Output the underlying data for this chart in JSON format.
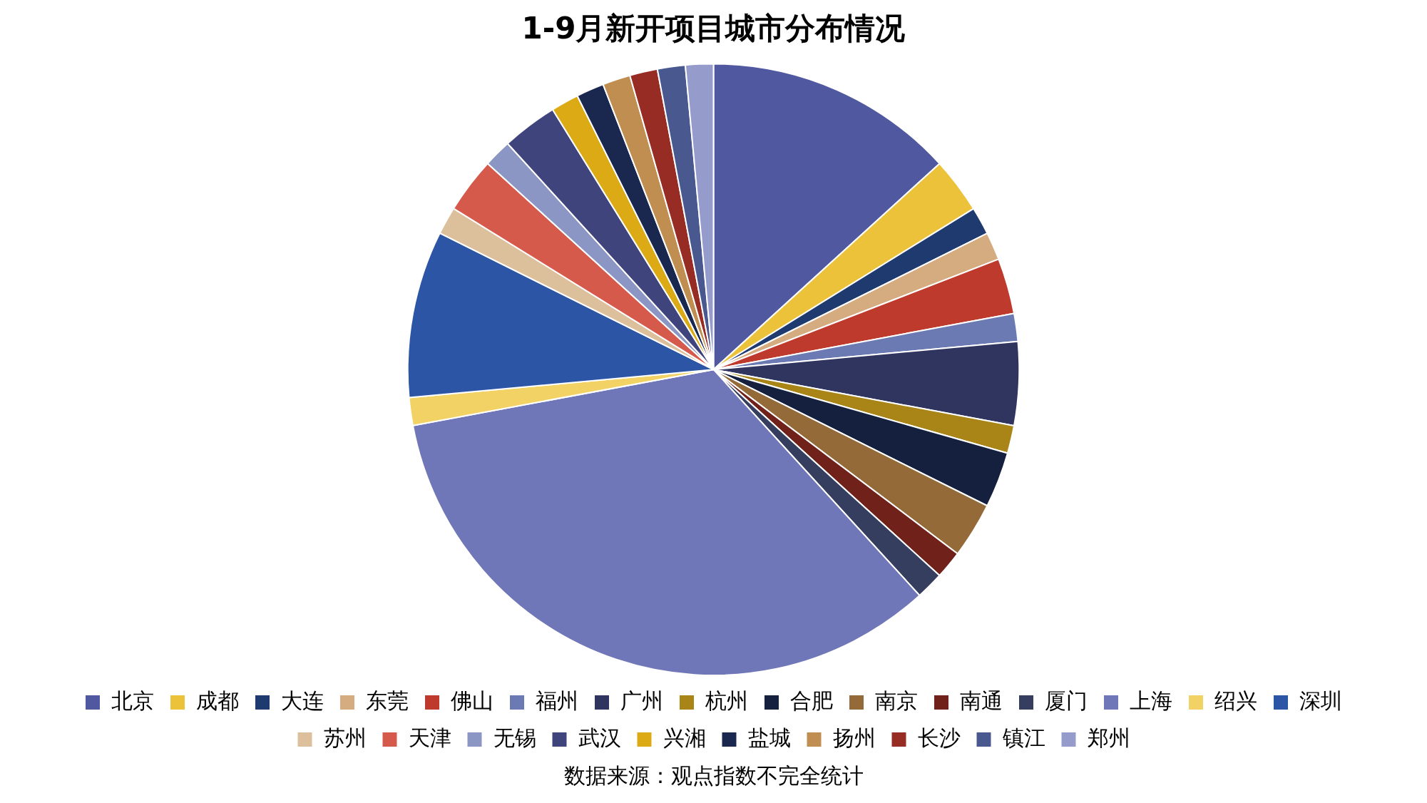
{
  "chart_data": {
    "type": "pie",
    "title": "1-9月新开项目城市分布情况",
    "categories": [
      "北京",
      "成都",
      "大连",
      "东莞",
      "佛山",
      "福州",
      "广州",
      "杭州",
      "合肥",
      "南京",
      "南通",
      "厦门",
      "上海",
      "绍兴",
      "深圳",
      "苏州",
      "天津",
      "无锡",
      "武汉",
      "兴湘",
      "盐城",
      "扬州",
      "长沙",
      "镇江",
      "郑州"
    ],
    "values": [
      13.24,
      2.94,
      1.47,
      1.47,
      2.94,
      1.47,
      4.41,
      1.47,
      2.94,
      2.94,
      1.47,
      1.47,
      33.84,
      1.47,
      8.82,
      1.47,
      2.94,
      1.47,
      2.94,
      1.47,
      1.47,
      1.47,
      1.47,
      1.47,
      1.47
    ],
    "colors": [
      "#5058a0",
      "#ecc23a",
      "#1f3a6e",
      "#d4ac80",
      "#be3a2c",
      "#6c7ab4",
      "#303560",
      "#a88516",
      "#14203e",
      "#936a38",
      "#70211a",
      "#363e60",
      "#6f77b8",
      "#f2d264",
      "#2d55a6",
      "#dcc09c",
      "#d65a4c",
      "#8c96c4",
      "#40447c",
      "#dcaa14",
      "#1a2850",
      "#c08e50",
      "#962c24",
      "#4a5890",
      "#959ccc"
    ],
    "legend": "bottom",
    "annotations": [
      "数据来源：观点指数不完全统计"
    ]
  }
}
